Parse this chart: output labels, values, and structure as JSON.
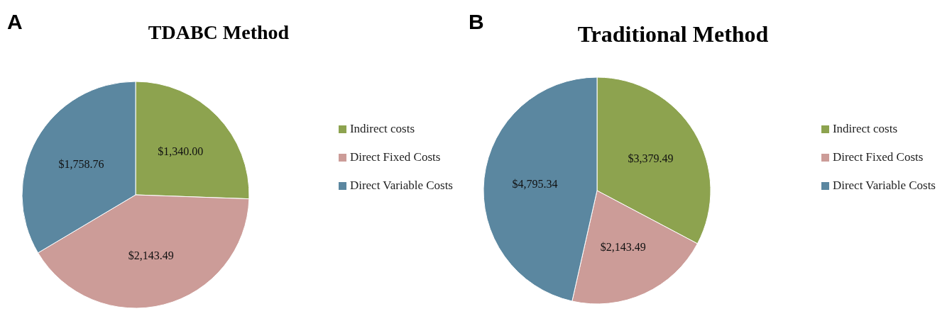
{
  "chart_data": [
    {
      "type": "pie",
      "title": "TDABC Method",
      "annotations": [
        "A"
      ],
      "categories": [
        "Indirect costs",
        "Direct Fixed Costs",
        "Direct Variable Costs"
      ],
      "values": [
        1340.0,
        2143.49,
        1758.76
      ],
      "value_labels": [
        "$1,340.00",
        "$2,143.49",
        "$1,758.76"
      ],
      "colors": [
        "#8da34f",
        "#cc9c98",
        "#5b87a0"
      ],
      "legend": "right"
    },
    {
      "type": "pie",
      "title": "Traditional Method",
      "annotations": [
        "B"
      ],
      "categories": [
        "Indirect costs",
        "Direct Fixed Costs",
        "Direct Variable Costs"
      ],
      "values": [
        3379.49,
        2143.49,
        4795.34
      ],
      "value_labels": [
        "$3,379.49",
        "$2,143.49",
        "$4,795.34"
      ],
      "colors": [
        "#8da34f",
        "#cc9c98",
        "#5b87a0"
      ],
      "legend": "right"
    }
  ]
}
